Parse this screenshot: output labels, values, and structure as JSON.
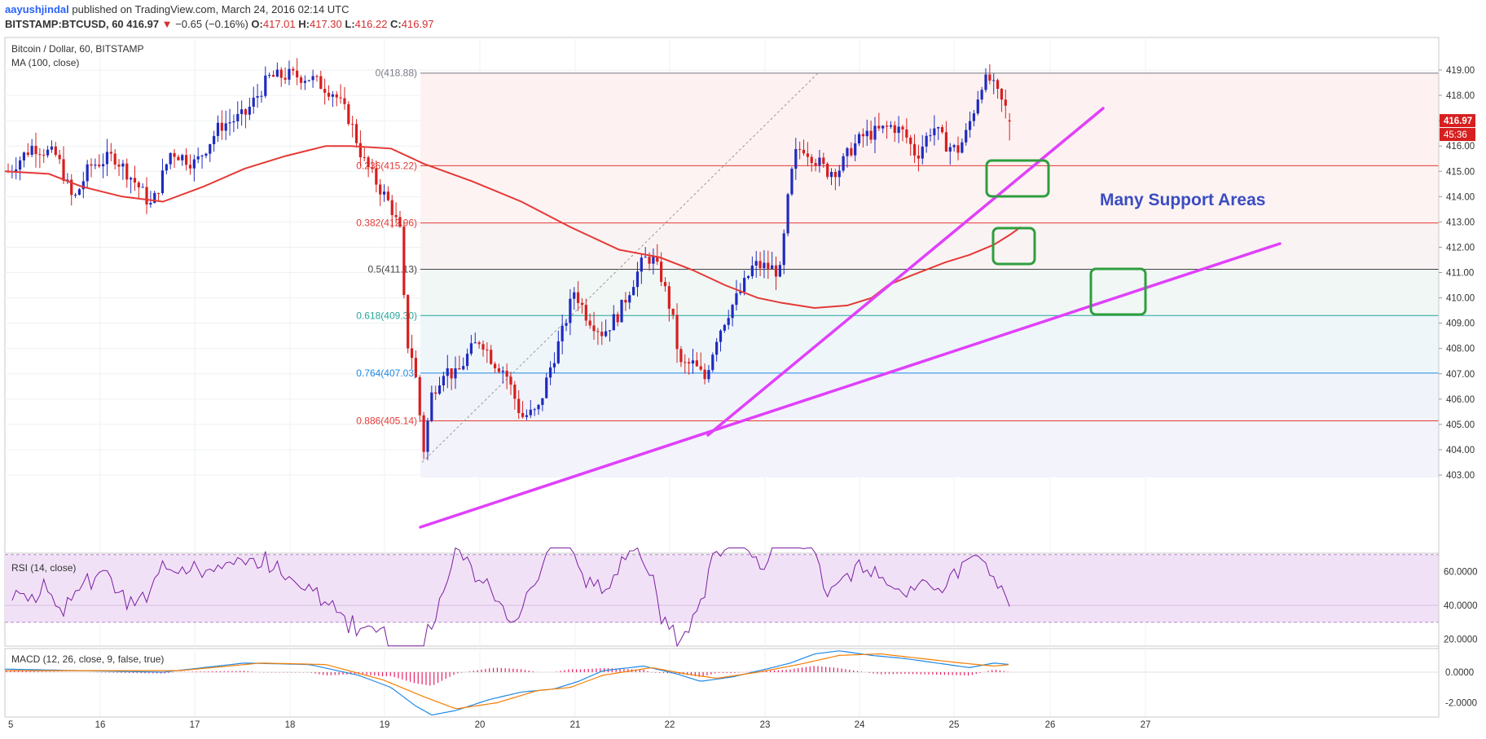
{
  "header": {
    "author": "aayushjindal",
    "published": "published on TradingView.com, March 24, 2016 02:14 UTC",
    "symbol": "BITSTAMP:BTCUSD, 60",
    "last": "416.97",
    "change_arrow": "▼",
    "change": "−0.65 (−0.16%)",
    "o_label": "O:",
    "o": "417.01",
    "h_label": "H:",
    "h": "417.30",
    "l_label": "L:",
    "l": "416.22",
    "c_label": "C:",
    "c": "416.97"
  },
  "chart_data": [
    {
      "type": "candlestick",
      "title": "Bitcoin / Dollar, 60, BITSTAMP",
      "indicator_label": "MA (100, close)",
      "x_tick_labels": [
        "5",
        "16",
        "17",
        "18",
        "19",
        "20",
        "21",
        "22",
        "23",
        "24",
        "25",
        "26",
        "27"
      ],
      "y_ticks": [
        403,
        404,
        405,
        406,
        407,
        408,
        409,
        410,
        411,
        412,
        413,
        414,
        415,
        416,
        417,
        418,
        419
      ],
      "ylim": [
        402.6,
        419.3
      ],
      "price_label": "416.97",
      "countdown_label": "45:36",
      "fib_levels": [
        {
          "label": "0(418.88)",
          "value": 418.88,
          "color": "#787b86"
        },
        {
          "label": "0.236(415.22)",
          "value": 415.22,
          "color": "#e53935"
        },
        {
          "label": "0.382(412.96)",
          "value": 412.96,
          "color": "#e53935"
        },
        {
          "label": "0.5(411.13)",
          "value": 411.13,
          "color": "#444444"
        },
        {
          "label": "0.618(409.30)",
          "value": 409.3,
          "color": "#26a69a"
        },
        {
          "label": "0.764(407.03)",
          "value": 407.03,
          "color": "#1e88e5"
        },
        {
          "label": "0.886(405.14)",
          "value": 405.14,
          "color": "#e53935"
        }
      ],
      "annotation": "Many Support Areas",
      "colors": {
        "up": "#1f2bbf",
        "down": "#d61f1f",
        "ma": "#e53935",
        "trendline": "#e040fb",
        "support_box": "#2e9e3e",
        "annotation": "#3b4cc0"
      }
    },
    {
      "type": "line",
      "title": "RSI (14, close)",
      "y_tick_labels": [
        "60.0000",
        "40.0000",
        "20.0000"
      ],
      "y_ticks": [
        60,
        40,
        20
      ],
      "ylim": [
        10,
        76
      ],
      "band": [
        30,
        70
      ],
      "color": "#7b1fa2"
    },
    {
      "type": "line",
      "title": "MACD (12, 26, close, 9, false, true)",
      "y_tick_labels": [
        "0.0000",
        "-2.0000"
      ],
      "y_ticks": [
        0,
        -2
      ],
      "ylim": [
        -3.2,
        2.0
      ],
      "colors": {
        "macd": "#1e88e5",
        "signal": "#f57c00",
        "hist": "#e91e63"
      }
    }
  ]
}
